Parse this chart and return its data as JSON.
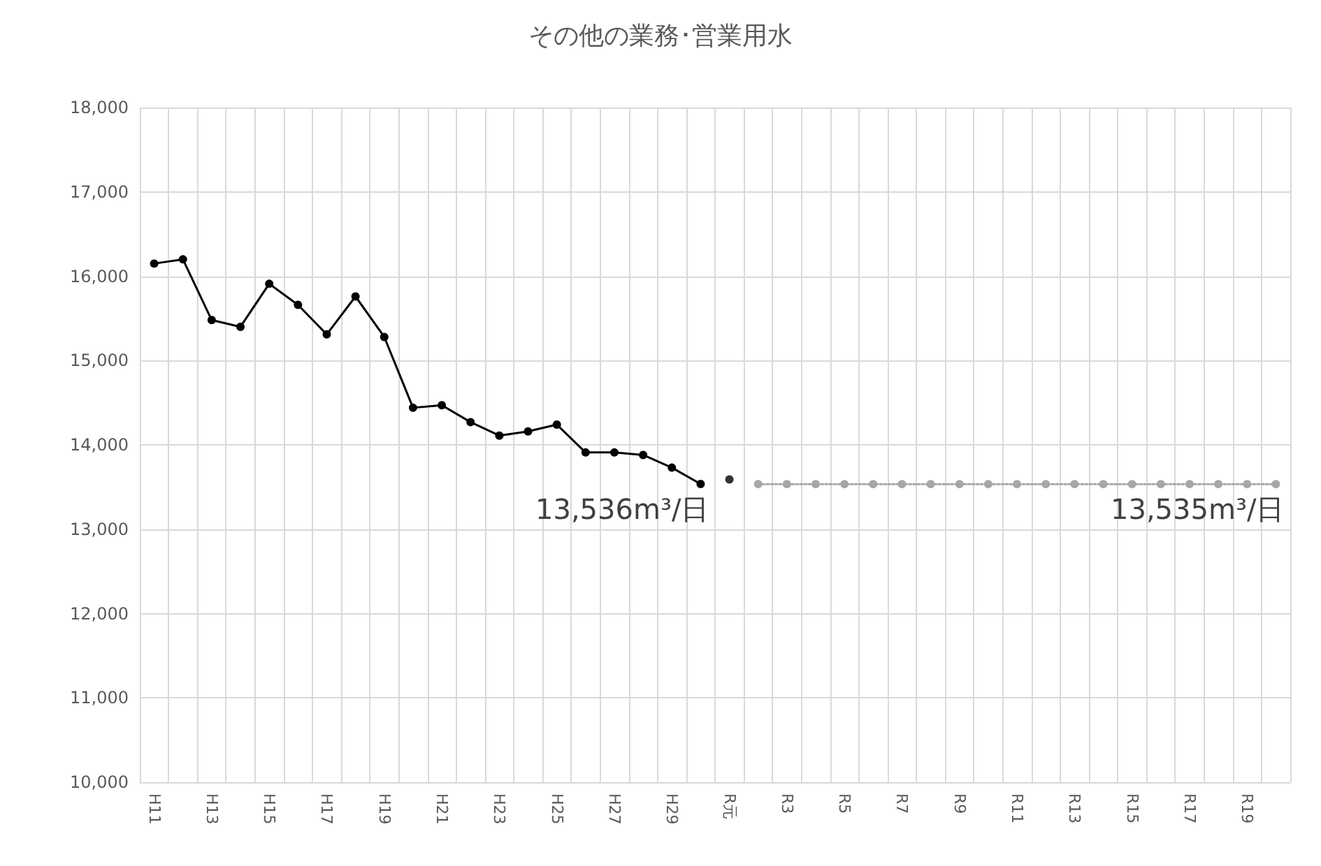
{
  "chart_data": {
    "type": "line",
    "title": "その他の業務･営業用水",
    "categories": [
      "H11",
      null,
      "H13",
      null,
      "H15",
      null,
      "H17",
      null,
      "H19",
      null,
      "H21",
      null,
      "H23",
      null,
      "H25",
      null,
      "H27",
      null,
      "H29",
      null,
      "R元",
      null,
      "R3",
      null,
      "R5",
      null,
      "R7",
      null,
      "R9",
      null,
      "R11",
      null,
      "R13",
      null,
      "R15",
      null,
      "R17",
      null,
      "R19",
      null
    ],
    "series": [
      {
        "type": "line",
        "color": "#000000",
        "marker": "circle",
        "line_style": "solid",
        "values": [
          16150,
          16200,
          15480,
          15400,
          15910,
          15660,
          15310,
          15760,
          15280,
          14440,
          14470,
          14270,
          14110,
          14160,
          14240,
          13910,
          13910,
          13880,
          13730,
          13536,
          null,
          null,
          null,
          null,
          null,
          null,
          null,
          null,
          null,
          null,
          null,
          null,
          null,
          null,
          null,
          null,
          null,
          null,
          null,
          null
        ]
      },
      {
        "type": "scatter",
        "color": "#000000",
        "marker": "circle",
        "values": [
          null,
          null,
          null,
          null,
          null,
          null,
          null,
          null,
          null,
          null,
          null,
          null,
          null,
          null,
          null,
          null,
          null,
          null,
          null,
          null,
          13590,
          null,
          null,
          null,
          null,
          null,
          null,
          null,
          null,
          null,
          null,
          null,
          null,
          null,
          null,
          null,
          null,
          null,
          null,
          null
        ]
      },
      {
        "type": "line",
        "color": "#a6a6a6",
        "marker": "circle",
        "line_style": "dotted",
        "values": [
          null,
          null,
          null,
          null,
          null,
          null,
          null,
          null,
          null,
          null,
          null,
          null,
          null,
          null,
          null,
          null,
          null,
          null,
          null,
          null,
          null,
          13535,
          13535,
          13535,
          13535,
          13535,
          13535,
          13535,
          13535,
          13535,
          13535,
          13535,
          13535,
          13535,
          13535,
          13535,
          13535,
          13535,
          13535,
          13535
        ]
      }
    ],
    "ylim": [
      10000,
      18000
    ],
    "yticks": [
      {
        "value": 10000,
        "label": "10,000"
      },
      {
        "value": 11000,
        "label": "11,000"
      },
      {
        "value": 12000,
        "label": "12,000"
      },
      {
        "value": 13000,
        "label": "13,000"
      },
      {
        "value": 14000,
        "label": "14,000"
      },
      {
        "value": 15000,
        "label": "15,000"
      },
      {
        "value": 16000,
        "label": "16,000"
      },
      {
        "value": 17000,
        "label": "17,000"
      },
      {
        "value": 18000,
        "label": "18,000"
      }
    ],
    "grid": true,
    "annotations": [
      "13,536m³/日",
      "13,535m³/日"
    ]
  }
}
